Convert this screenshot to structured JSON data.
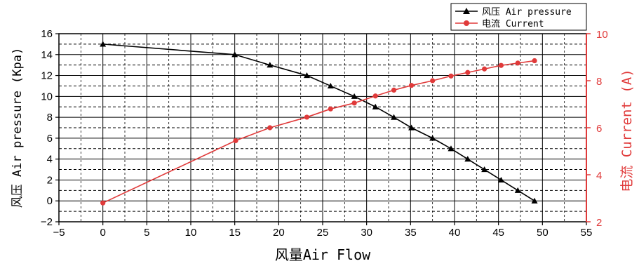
{
  "chart_data": {
    "type": "line",
    "xlabel": "风量Air Flow",
    "ylabel_left": "风压 Air pressure (Kpa)",
    "ylabel_right": "电流 Current (A)",
    "xlim": [
      -5,
      55
    ],
    "ylim_left": [
      -2,
      16
    ],
    "ylim_right": [
      2,
      10
    ],
    "x_ticks": [
      -5,
      0,
      5,
      10,
      15,
      20,
      25,
      30,
      35,
      40,
      45,
      50,
      55
    ],
    "y_ticks_left": [
      -2,
      0,
      2,
      4,
      6,
      8,
      10,
      12,
      14,
      16
    ],
    "y_ticks_right": [
      2,
      4,
      6,
      8,
      10
    ],
    "grid": true,
    "legend_position": "top-right",
    "colors": {
      "pressure": "#000000",
      "current": "#e03a3a"
    },
    "series": [
      {
        "name": "风压 Air pressure",
        "axis": "left",
        "marker": "triangle",
        "x": [
          0,
          15,
          19,
          23.2,
          25.9,
          28.6,
          31,
          33.1,
          35.1,
          37.5,
          39.6,
          41.5,
          43.4,
          45.3,
          47.2,
          49.1
        ],
        "y": [
          15,
          14,
          13,
          12,
          11,
          10,
          9,
          8,
          7,
          6,
          5,
          4,
          3,
          2,
          1,
          0
        ]
      },
      {
        "name": "电流 Current",
        "axis": "right",
        "marker": "circle",
        "x": [
          0,
          15.1,
          19,
          23.2,
          25.9,
          28.6,
          31,
          33.1,
          35.1,
          37.5,
          39.6,
          41.5,
          43.4,
          45.3,
          47.2,
          49.1
        ],
        "y": [
          2.8,
          5.45,
          6.0,
          6.45,
          6.8,
          7.05,
          7.35,
          7.6,
          7.8,
          8.0,
          8.2,
          8.35,
          8.5,
          8.65,
          8.75,
          8.85
        ]
      }
    ]
  }
}
